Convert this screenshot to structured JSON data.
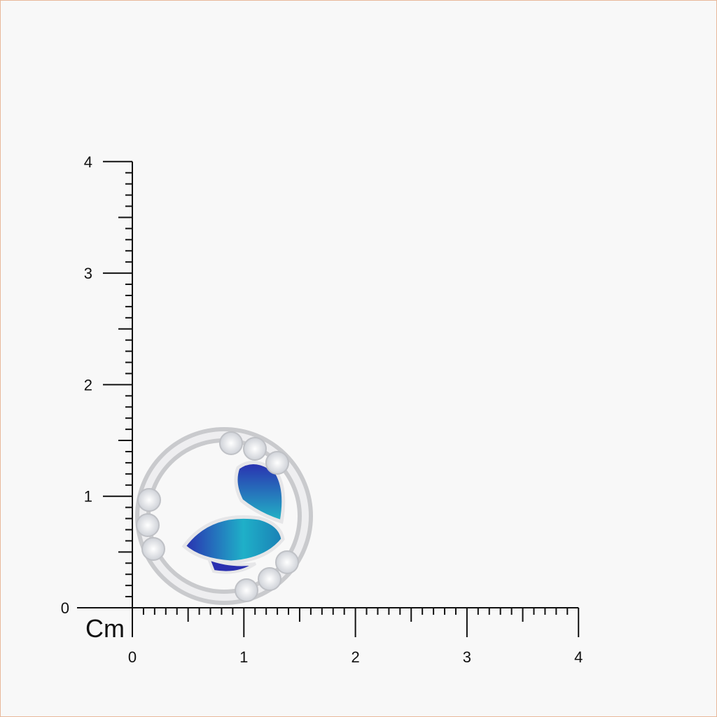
{
  "ruler": {
    "unit_label": "Cm",
    "x_labels": [
      "0",
      "1",
      "2",
      "3",
      "4"
    ],
    "y_labels": [
      "0",
      "1",
      "2",
      "3",
      "4"
    ],
    "range_cm": [
      0,
      4
    ],
    "minor_divisions_per_cm": 10,
    "color": "#111111"
  },
  "product": {
    "type": "circular stud earring with blue enamel leaves and clear stones",
    "colors": {
      "metal": "#d9d9dc",
      "enamel_dark": "#2a2fb0",
      "enamel_light": "#1fb0c8",
      "stone": "#f2f2f4"
    },
    "approx_diameter_cm": 1.6
  }
}
